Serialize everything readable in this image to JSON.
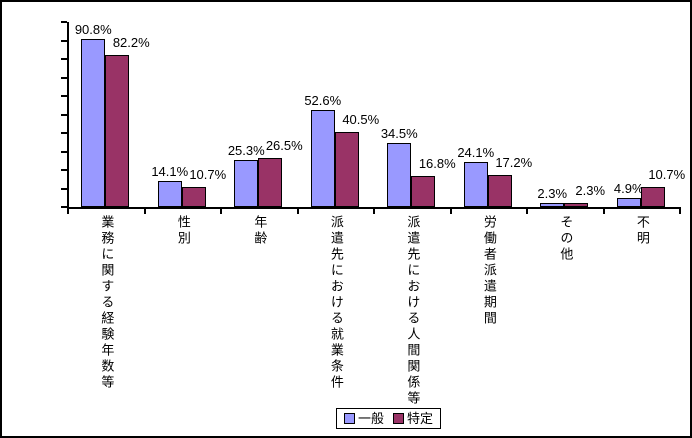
{
  "chart_data": {
    "type": "bar",
    "title": "",
    "xlabel": "",
    "ylabel": "",
    "categories": [
      "業務に関する経験年数等",
      "性別",
      "年齢",
      "派遣先における就業条件",
      "派遣先における人間関係等",
      "労働者派遣期間",
      "その他",
      "不明"
    ],
    "series": [
      {
        "name": "一般",
        "color": "#9999FF",
        "values": [
          90.8,
          14.1,
          25.3,
          52.6,
          34.5,
          24.1,
          2.3,
          4.9
        ]
      },
      {
        "name": "特定",
        "color": "#993366",
        "values": [
          82.2,
          10.7,
          26.5,
          40.5,
          16.8,
          17.2,
          2.3,
          10.7
        ]
      }
    ],
    "data_label_suffix": "%",
    "ylim": [
      0,
      100
    ],
    "y_tick_interval": 10,
    "y_tick_labels_visible": false,
    "grid": false,
    "legend_position": "bottom",
    "background_color": "#FFFFFF",
    "axis_color": "#000000",
    "bar_border_color": "#000000"
  }
}
